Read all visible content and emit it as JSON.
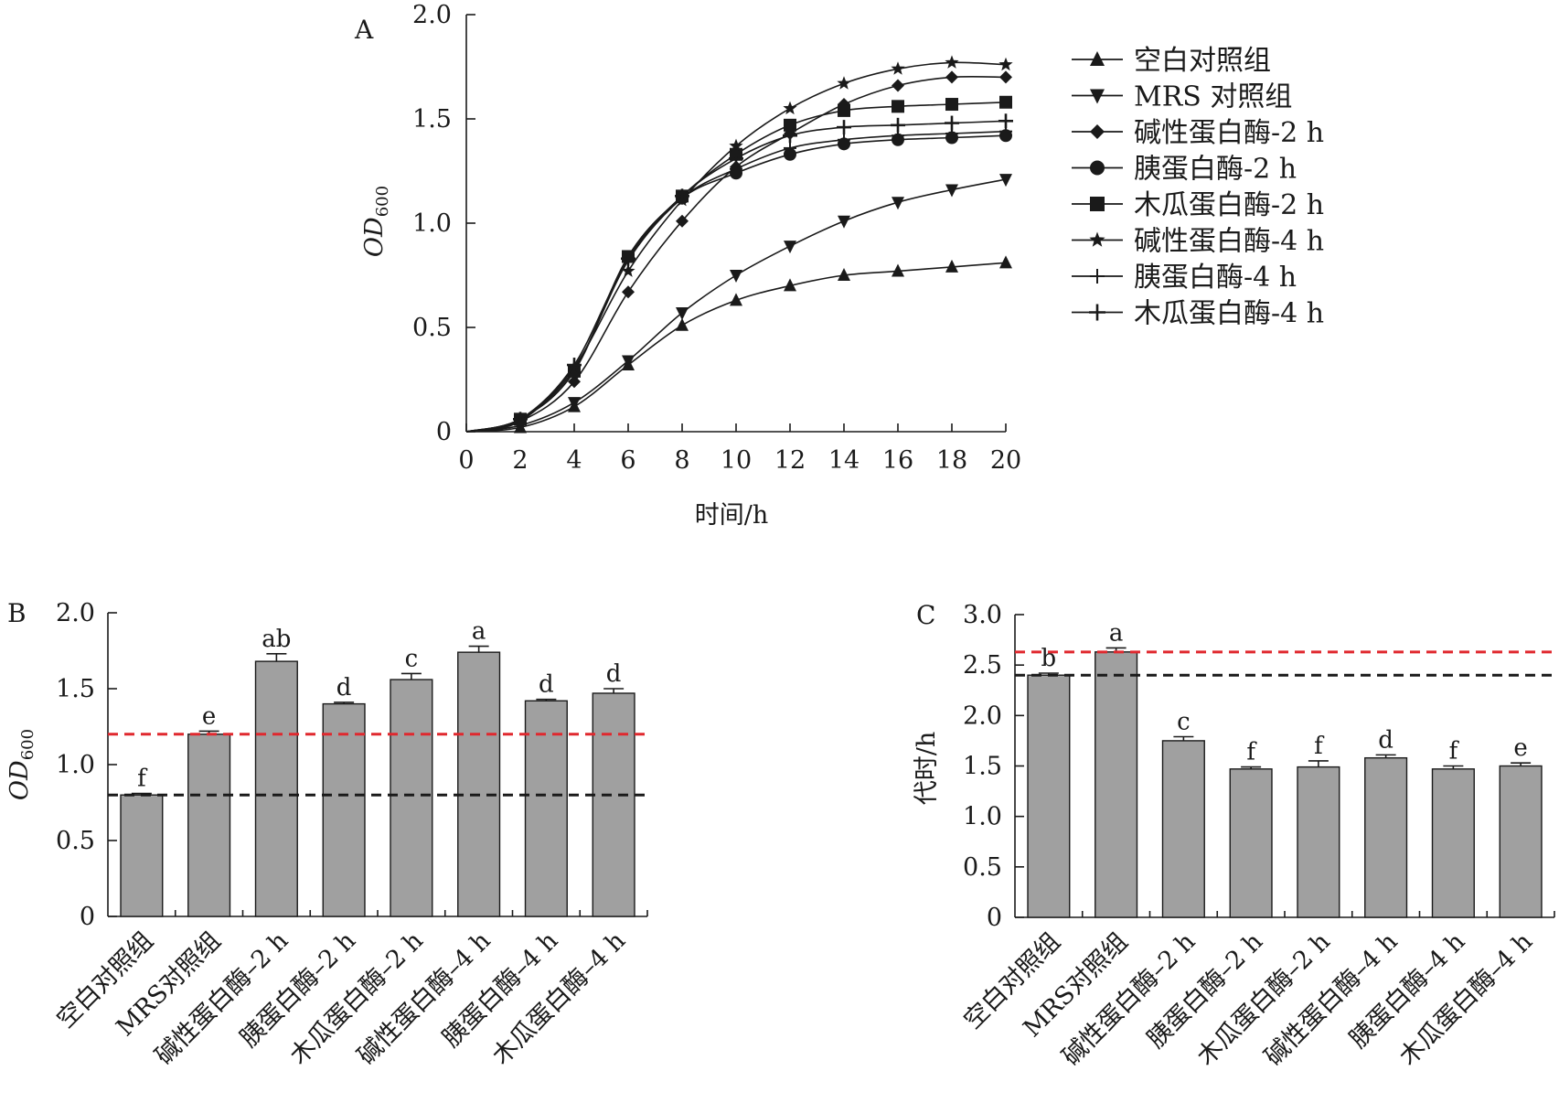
{
  "chart_data": [
    {
      "panel": "A",
      "type": "line",
      "xlabel": "时间/h",
      "ylabel_main": "OD",
      "ylabel_sub": "600",
      "xlim": [
        0,
        20
      ],
      "ylim": [
        0,
        2.0
      ],
      "xticks": [
        "0",
        "2",
        "4",
        "6",
        "8",
        "10",
        "12",
        "14",
        "16",
        "18",
        "20"
      ],
      "yticks": [
        "0",
        "0.5",
        "1.0",
        "1.5",
        "2.0"
      ],
      "legend_position": "right",
      "x": [
        0,
        2,
        4,
        6,
        8,
        10,
        12,
        14,
        16,
        18,
        20
      ],
      "series": [
        {
          "name": "空白对照组",
          "marker": "triangle-up",
          "values": [
            0,
            0.02,
            0.12,
            0.32,
            0.51,
            0.63,
            0.7,
            0.75,
            0.77,
            0.79,
            0.81
          ]
        },
        {
          "name": "MRS 对照组",
          "marker": "triangle-down",
          "values": [
            0,
            0.03,
            0.14,
            0.34,
            0.57,
            0.75,
            0.89,
            1.01,
            1.1,
            1.16,
            1.21
          ]
        },
        {
          "name": "碱性蛋白酶-2 h",
          "marker": "diamond",
          "values": [
            0,
            0.05,
            0.24,
            0.67,
            1.01,
            1.27,
            1.43,
            1.57,
            1.66,
            1.7,
            1.7
          ]
        },
        {
          "name": "胰蛋白酶-2 h",
          "marker": "circle",
          "values": [
            0,
            0.06,
            0.29,
            0.84,
            1.12,
            1.24,
            1.33,
            1.38,
            1.4,
            1.41,
            1.42
          ]
        },
        {
          "name": "木瓜蛋白酶-2 h",
          "marker": "square",
          "values": [
            0,
            0.06,
            0.29,
            0.84,
            1.13,
            1.33,
            1.47,
            1.54,
            1.56,
            1.57,
            1.58
          ]
        },
        {
          "name": "碱性蛋白酶-4 h",
          "marker": "star",
          "values": [
            0,
            0.05,
            0.31,
            0.77,
            1.11,
            1.37,
            1.55,
            1.67,
            1.74,
            1.77,
            1.76
          ]
        },
        {
          "name": "胰蛋白酶-4 h",
          "marker": "plus",
          "values": [
            0,
            0.06,
            0.3,
            0.82,
            1.12,
            1.26,
            1.36,
            1.4,
            1.42,
            1.43,
            1.44
          ]
        },
        {
          "name": "木瓜蛋白酶-4 h",
          "marker": "cross",
          "values": [
            0,
            0.06,
            0.32,
            0.83,
            1.13,
            1.31,
            1.42,
            1.46,
            1.47,
            1.48,
            1.49
          ]
        }
      ]
    },
    {
      "panel": "B",
      "type": "bar",
      "ylabel_main": "OD",
      "ylabel_sub": "600",
      "ylim": [
        0,
        2.0
      ],
      "yticks": [
        "0",
        "0.5",
        "1.0",
        "1.5",
        "2.0"
      ],
      "categories": [
        "空白对照组",
        "MRS对照组",
        "碱性蛋白酶–2 h",
        "胰蛋白酶–2 h",
        "木瓜蛋白酶–2 h",
        "碱性蛋白酶–4 h",
        "胰蛋白酶–4 h",
        "木瓜蛋白酶–4 h"
      ],
      "values": [
        0.8,
        1.2,
        1.68,
        1.4,
        1.56,
        1.74,
        1.42,
        1.47
      ],
      "errors": [
        0.01,
        0.02,
        0.05,
        0.01,
        0.04,
        0.04,
        0.01,
        0.03
      ],
      "labels": [
        "f",
        "e",
        "ab",
        "d",
        "c",
        "a",
        "d",
        "d"
      ],
      "reference_lines": [
        {
          "value": 1.2,
          "color": "#e0282e"
        },
        {
          "value": 0.8,
          "color": "#1a1a1a"
        }
      ]
    },
    {
      "panel": "C",
      "type": "bar",
      "ylabel": "代时/h",
      "ylim": [
        0,
        3.0
      ],
      "yticks": [
        "0",
        "0.5",
        "1.0",
        "1.5",
        "2.0",
        "2.5",
        "3.0"
      ],
      "categories": [
        "空白对照组",
        "MRS对照组",
        "碱性蛋白酶–2 h",
        "胰蛋白酶–2 h",
        "木瓜蛋白酶–2 h",
        "碱性蛋白酶–4 h",
        "胰蛋白酶–4 h",
        "木瓜蛋白酶–4 h"
      ],
      "values": [
        2.4,
        2.63,
        1.75,
        1.47,
        1.49,
        1.58,
        1.47,
        1.5
      ],
      "errors": [
        0.02,
        0.04,
        0.04,
        0.02,
        0.06,
        0.03,
        0.03,
        0.03
      ],
      "labels": [
        "b",
        "a",
        "c",
        "f",
        "f",
        "d",
        "f",
        "e"
      ],
      "reference_lines": [
        {
          "value": 2.63,
          "color": "#e0282e"
        },
        {
          "value": 2.4,
          "color": "#1a1a1a"
        }
      ]
    }
  ]
}
